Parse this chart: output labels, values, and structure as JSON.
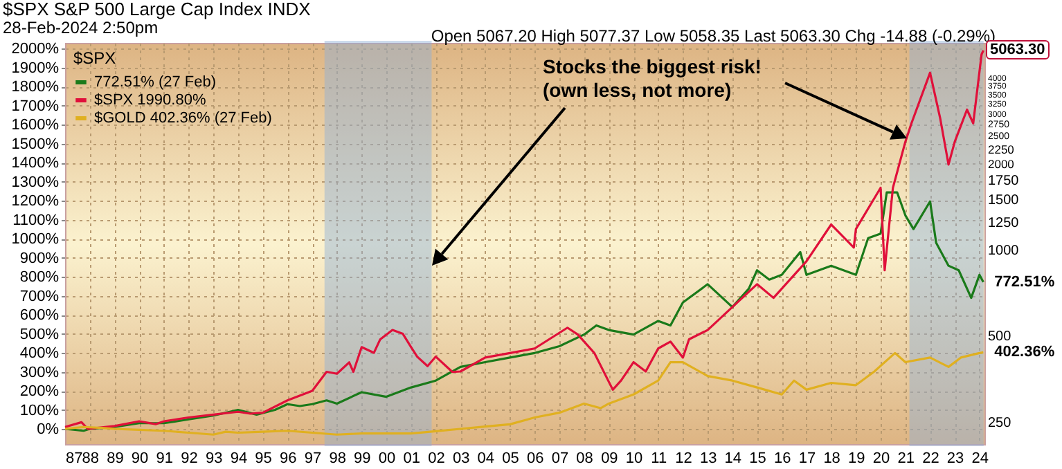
{
  "chart_data": {
    "type": "line",
    "title": "$SPX S&P 500 Large Cap Index INDX",
    "subtitle": "28-Feb-2024 2:50pm",
    "legend_title": "$SPX",
    "legend": "top left",
    "grid": true,
    "xlim": [
      "1987-01-01",
      "2024-03-15"
    ],
    "xticks": [
      {
        "value": "1987",
        "label": "87"
      },
      {
        "value": "1988",
        "label": "88"
      },
      {
        "value": "1989",
        "label": "89"
      },
      {
        "value": "1990",
        "label": "90"
      },
      {
        "value": "1991",
        "label": "91"
      },
      {
        "value": "1992",
        "label": "92"
      },
      {
        "value": "1993",
        "label": "93"
      },
      {
        "value": "1994",
        "label": "94"
      },
      {
        "value": "1995",
        "label": "95"
      },
      {
        "value": "1996",
        "label": "96"
      },
      {
        "value": "1997",
        "label": "97"
      },
      {
        "value": "1998",
        "label": "98"
      },
      {
        "value": "1999",
        "label": "99"
      },
      {
        "value": "2000",
        "label": "00"
      },
      {
        "value": "2001",
        "label": "01"
      },
      {
        "value": "2002",
        "label": "02"
      },
      {
        "value": "2003",
        "label": "03"
      },
      {
        "value": "2004",
        "label": "04"
      },
      {
        "value": "2005",
        "label": "05"
      },
      {
        "value": "2006",
        "label": "06"
      },
      {
        "value": "2007",
        "label": "07"
      },
      {
        "value": "2008",
        "label": "08"
      },
      {
        "value": "2009",
        "label": "09"
      },
      {
        "value": "2010",
        "label": "10"
      },
      {
        "value": "2011",
        "label": "11"
      },
      {
        "value": "2012",
        "label": "12"
      },
      {
        "value": "2013",
        "label": "13"
      },
      {
        "value": "2014",
        "label": "14"
      },
      {
        "value": "2015",
        "label": "15"
      },
      {
        "value": "2016",
        "label": "16"
      },
      {
        "value": "2017",
        "label": "17"
      },
      {
        "value": "2018",
        "label": "18"
      },
      {
        "value": "2019",
        "label": "19"
      },
      {
        "value": "2020",
        "label": "20"
      },
      {
        "value": "2021",
        "label": "21"
      },
      {
        "value": "2022",
        "label": "22"
      },
      {
        "value": "2023",
        "label": "23"
      },
      {
        "value": "2024",
        "label": "24"
      }
    ],
    "ylim": [
      -80,
      2030
    ],
    "yticks": [
      {
        "value": 0,
        "label": "0%"
      },
      {
        "value": 100,
        "label": "100%"
      },
      {
        "value": 200,
        "label": "200%"
      },
      {
        "value": 300,
        "label": "300%"
      },
      {
        "value": 400,
        "label": "400%"
      },
      {
        "value": 500,
        "label": "500%"
      },
      {
        "value": 600,
        "label": "600%"
      },
      {
        "value": 700,
        "label": "700%"
      },
      {
        "value": 800,
        "label": "800%"
      },
      {
        "value": 900,
        "label": "900%"
      },
      {
        "value": 1000,
        "label": "1000%"
      },
      {
        "value": 1100,
        "label": "1100%"
      },
      {
        "value": 1200,
        "label": "1200%"
      },
      {
        "value": 1300,
        "label": "1300%"
      },
      {
        "value": 1400,
        "label": "1400%"
      },
      {
        "value": 1500,
        "label": "1500%"
      },
      {
        "value": 1600,
        "label": "1600%"
      },
      {
        "value": 1700,
        "label": "1700%"
      },
      {
        "value": 1800,
        "label": "1800%"
      },
      {
        "value": 1900,
        "label": "1900%"
      },
      {
        "value": 2000,
        "label": "2000%"
      }
    ],
    "log": "y2",
    "y2lim": [
      209,
      5280
    ],
    "y2ticks": [
      250,
      500,
      1000,
      1250,
      1500,
      1750,
      2000,
      2250,
      2500,
      2750,
      3000,
      3250,
      3500,
      3750,
      4000
    ],
    "bands": [
      {
        "axis": "x",
        "from": "1997-08",
        "to": "2001-10",
        "color": "#8fb0d8"
      },
      {
        "axis": "x",
        "from": "2021-04",
        "to": "2024-02",
        "color": "#8fb0d8"
      }
    ],
    "annotations": [
      "Open 5067.20 High 5077.37 Low 5058.35 Last 5063.30 Chg -14.88 (-0.29%)",
      "Stocks the biggest risk!\n(own less, not more)",
      "5063.30",
      {
        "text": "772.51%",
        "x": "2024-02-27",
        "y": 772.51
      },
      {
        "text": "402.36%",
        "x": "2024-02-27",
        "y": 402.36
      }
    ],
    "series": [
      {
        "name": "772.51% (27 Feb)",
        "color": "#1a7a1a",
        "x": [
          "1987-01",
          "1987-10",
          "1988-01",
          "1989-01",
          "1990-01",
          "1991-01",
          "1992-01",
          "1993-01",
          "1994-01",
          "1994-10",
          "1995-07",
          "1996-01",
          "1996-07",
          "1997-01",
          "1997-08",
          "1998-01",
          "1999-01",
          "2000-01",
          "2001-01",
          "2002-01",
          "2003-01",
          "2004-01",
          "2005-01",
          "2006-01",
          "2007-01",
          "2008-01",
          "2008-07",
          "2009-01",
          "2010-01",
          "2011-01",
          "2011-07",
          "2012-01",
          "2013-01",
          "2014-01",
          "2014-09",
          "2015-01",
          "2015-07",
          "2016-01",
          "2016-10",
          "2017-01",
          "2018-01",
          "2019-01",
          "2019-07",
          "2020-01",
          "2020-04",
          "2020-09",
          "2021-01",
          "2021-05",
          "2022-01",
          "2022-04",
          "2022-10",
          "2023-03",
          "2023-09",
          "2024-01",
          "2024-02-27"
        ],
        "values": [
          0,
          -10,
          0,
          10,
          30,
          30,
          50,
          70,
          100,
          75,
          100,
          130,
          120,
          130,
          150,
          133,
          193,
          169,
          218,
          254,
          326,
          351,
          375,
          399,
          435,
          496,
          544,
          520,
          496,
          568,
          544,
          665,
          761,
          641,
          737,
          834,
          785,
          810,
          930,
          810,
          858,
          810,
          1003,
          1027,
          1244,
          1244,
          1123,
          1051,
          1196,
          979,
          858,
          834,
          689,
          810,
          772.51
        ]
      },
      {
        "name": "$SPX 1990.80%",
        "color": "#e0103a",
        "x": [
          "1987-01",
          "1987-09",
          "1987-12",
          "1989-01",
          "1990-01",
          "1990-09",
          "1991-01",
          "1992-01",
          "1993-01",
          "1994-01",
          "1994-07",
          "1995-01",
          "1996-01",
          "1997-01",
          "1997-08",
          "1998-01",
          "1998-07",
          "1998-09",
          "1999-01",
          "1999-07",
          "1999-10",
          "2000-04",
          "2000-09",
          "2001-01",
          "2001-04",
          "2001-09",
          "2002-01",
          "2002-09",
          "2003-01",
          "2004-01",
          "2005-01",
          "2006-01",
          "2007-05",
          "2007-10",
          "2008-06",
          "2009-03",
          "2009-07",
          "2010-01",
          "2010-07",
          "2011-01",
          "2011-07",
          "2012-01",
          "2012-04",
          "2013-01",
          "2014-01",
          "2015-01",
          "2015-09",
          "2016-01",
          "2017-01",
          "2018-01",
          "2018-12",
          "2019-01",
          "2020-01",
          "2020-03",
          "2020-07",
          "2021-01",
          "2021-04",
          "2022-01",
          "2022-06",
          "2022-10",
          "2023-01",
          "2023-07",
          "2023-10",
          "2024-02-01",
          "2024-02-28"
        ],
        "values": [
          10,
          35,
          0,
          15,
          40,
          25,
          40,
          60,
          75,
          90,
          80,
          85,
          150,
          200,
          300,
          290,
          350,
          300,
          430,
          400,
          470,
          520,
          500,
          430,
          380,
          330,
          380,
          300,
          302,
          375,
          399,
          423,
          532,
          496,
          399,
          206,
          254,
          351,
          302,
          423,
          459,
          375,
          471,
          520,
          641,
          761,
          689,
          737,
          882,
          1075,
          954,
          1051,
          1268,
          834,
          1268,
          1510,
          1607,
          1873,
          1631,
          1390,
          1510,
          1679,
          1607,
          1969,
          1990.8
        ]
      },
      {
        "name": "$GOLD 402.36% (27 Feb)",
        "color": "#e0b020",
        "x": [
          "1987-01",
          "1987-10",
          "1988-07",
          "1989-01",
          "1990-01",
          "1991-01",
          "1992-01",
          "1993-01",
          "1993-07",
          "1994-01",
          "1995-01",
          "1996-01",
          "1997-01",
          "1998-01",
          "1999-01",
          "2001-01",
          "2002-01",
          "2003-01",
          "2004-01",
          "2005-01",
          "2006-01",
          "2007-01",
          "2008-01",
          "2008-09",
          "2009-01",
          "2010-01",
          "2011-01",
          "2011-07",
          "2012-01",
          "2013-01",
          "2014-01",
          "2015-01",
          "2016-01",
          "2016-07",
          "2017-01",
          "2018-01",
          "2019-01",
          "2019-10",
          "2020-08",
          "2021-01",
          "2022-01",
          "2022-10",
          "2023-04",
          "2024-01",
          "2024-02-27"
        ],
        "values": [
          0,
          10,
          5,
          0,
          -5,
          -10,
          -20,
          -30,
          -15,
          -20,
          -15,
          -10,
          -20,
          -30,
          -24,
          -24,
          -12,
          0,
          12,
          24,
          60,
          85,
          133,
          109,
          133,
          181,
          254,
          351,
          351,
          278,
          254,
          218,
          181,
          254,
          206,
          242,
          230,
          302,
          399,
          351,
          375,
          326,
          375,
          399,
          402.36
        ]
      }
    ]
  }
}
